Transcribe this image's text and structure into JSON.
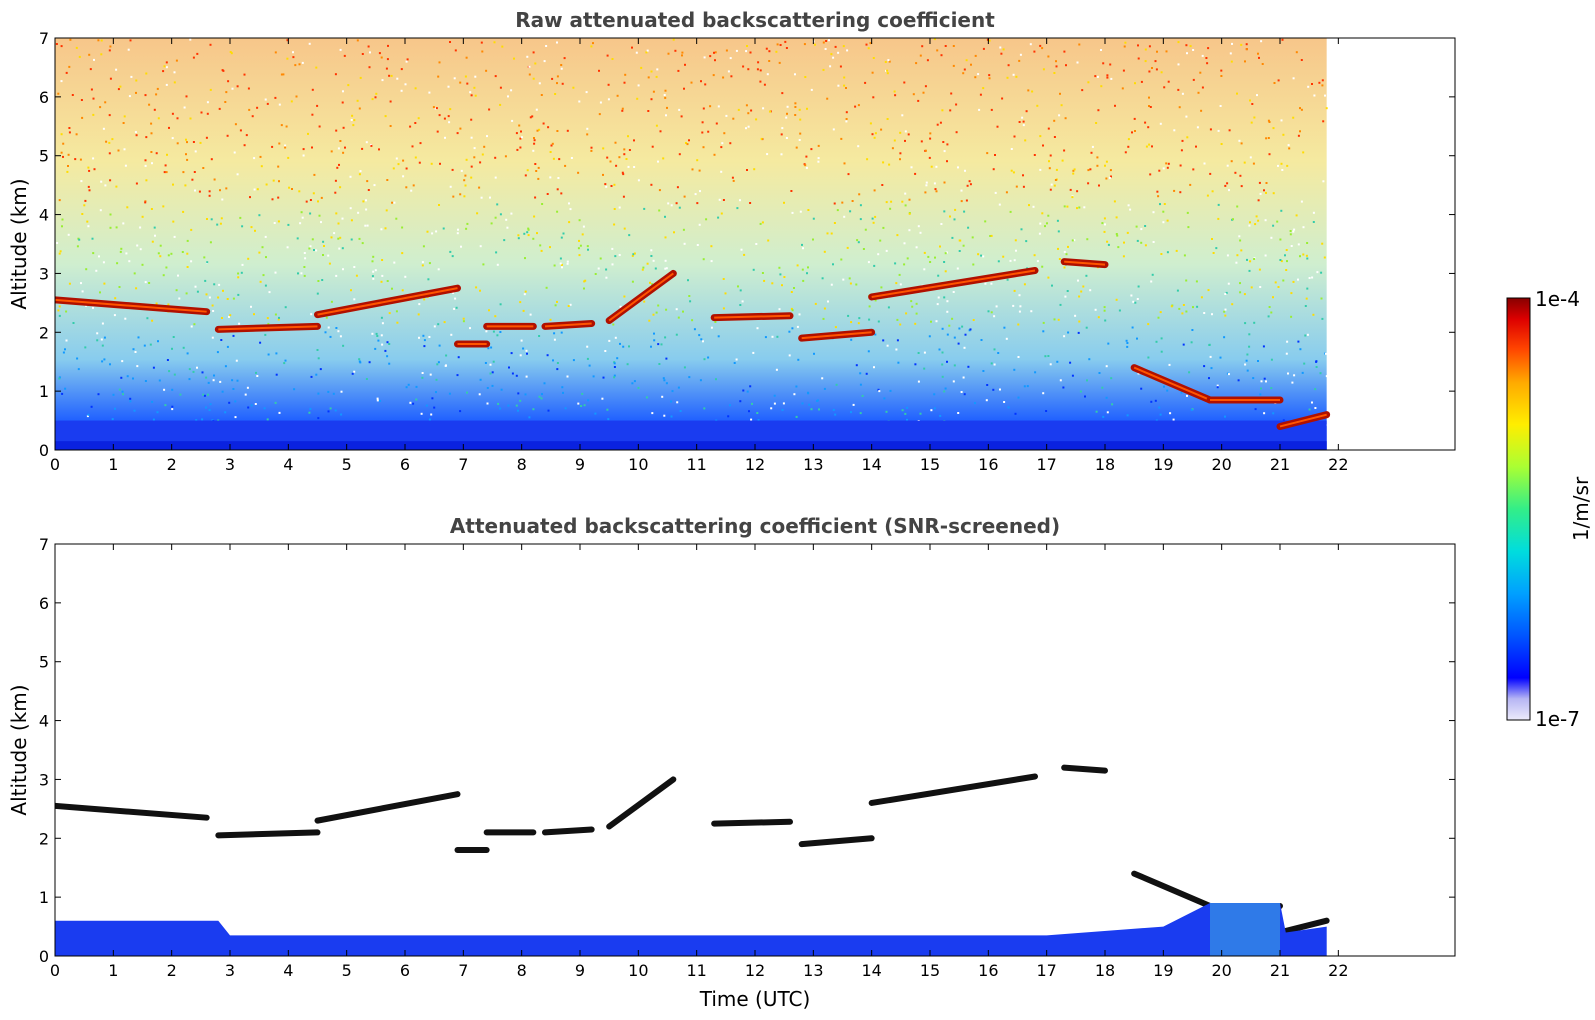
{
  "chart_data": [
    {
      "type": "heatmap",
      "title": "Raw attenuated backscattering coefficient",
      "xlabel": "",
      "ylabel": "Altitude (km)",
      "xlim": [
        0,
        24
      ],
      "ylim": [
        0,
        7
      ],
      "data_extent_x": [
        0,
        21.8
      ],
      "xticks": [
        "0",
        "1",
        "2",
        "3",
        "4",
        "5",
        "6",
        "7",
        "8",
        "9",
        "10",
        "11",
        "12",
        "13",
        "14",
        "15",
        "16",
        "17",
        "18",
        "19",
        "20",
        "21",
        "22"
      ],
      "yticks": [
        "0",
        "1",
        "2",
        "3",
        "4",
        "5",
        "6",
        "7"
      ],
      "features": {
        "cloud_layers": [
          {
            "x": [
              0,
              2.6
            ],
            "y": [
              2.55,
              2.35
            ]
          },
          {
            "x": [
              2.8,
              4.5
            ],
            "y": [
              2.05,
              2.1
            ]
          },
          {
            "x": [
              4.5,
              6.9
            ],
            "y": [
              2.3,
              2.75
            ]
          },
          {
            "x": [
              6.9,
              7.4
            ],
            "y": [
              1.8,
              1.8
            ]
          },
          {
            "x": [
              7.4,
              8.2
            ],
            "y": [
              2.1,
              2.1
            ]
          },
          {
            "x": [
              8.4,
              9.2
            ],
            "y": [
              2.1,
              2.15
            ]
          },
          {
            "x": [
              9.5,
              10.6
            ],
            "y": [
              2.2,
              3.0
            ]
          },
          {
            "x": [
              11.3,
              12.6
            ],
            "y": [
              2.25,
              2.28
            ]
          },
          {
            "x": [
              12.8,
              14.0
            ],
            "y": [
              1.9,
              2.0
            ]
          },
          {
            "x": [
              14.0,
              16.8
            ],
            "y": [
              2.6,
              3.05
            ]
          },
          {
            "x": [
              17.3,
              18.0
            ],
            "y": [
              3.2,
              3.15
            ]
          },
          {
            "x": [
              18.5,
              19.8
            ],
            "y": [
              1.4,
              0.85
            ]
          },
          {
            "x": [
              19.8,
              21.0
            ],
            "y": [
              0.85,
              0.85
            ]
          },
          {
            "x": [
              21.0,
              21.8
            ],
            "y": [
              0.4,
              0.6
            ]
          }
        ],
        "boundary_layer_top_km": 0.5
      }
    },
    {
      "type": "heatmap",
      "title": "Attenuated backscattering coefficient (SNR-screened)",
      "xlabel": "Time (UTC)",
      "ylabel": "Altitude (km)",
      "xlim": [
        0,
        24
      ],
      "ylim": [
        0,
        7
      ],
      "data_extent_x": [
        0,
        21.8
      ],
      "xticks": [
        "0",
        "1",
        "2",
        "3",
        "4",
        "5",
        "6",
        "7",
        "8",
        "9",
        "10",
        "11",
        "12",
        "13",
        "14",
        "15",
        "16",
        "17",
        "18",
        "19",
        "20",
        "21",
        "22"
      ],
      "yticks": [
        "0",
        "1",
        "2",
        "3",
        "4",
        "5",
        "6",
        "7"
      ],
      "features": {
        "boundary_layer_top_km": [
          0.6,
          0.35,
          0.5,
          0.9
        ]
      }
    }
  ],
  "colorbar": {
    "label": "1/m/sr",
    "max_label": "1e-4",
    "min_label": "1e-7",
    "scale": "log",
    "colormap": [
      "#ecebfb",
      "#b7b6f4",
      "#0000ff",
      "#0055ff",
      "#00a0ff",
      "#00dddd",
      "#33ee88",
      "#aaff33",
      "#ffee00",
      "#ffaa00",
      "#ff4400",
      "#dd0000",
      "#880000"
    ]
  }
}
